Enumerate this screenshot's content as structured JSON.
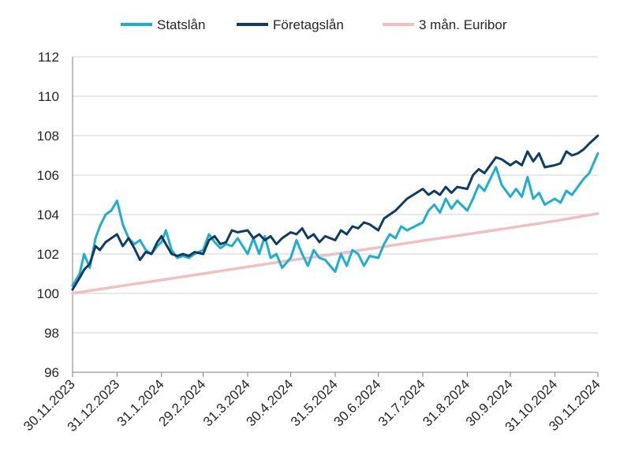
{
  "chart_data": {
    "type": "line",
    "title": "",
    "xlabel": "",
    "ylabel": "",
    "ylim": [
      96,
      112
    ],
    "yticks": [
      "96",
      "98",
      "100",
      "102",
      "104",
      "106",
      "108",
      "110",
      "112"
    ],
    "xticks": [
      "30.11.2023",
      "31.12.2023",
      "31.1.2024",
      "29.2.2024",
      "31.3.2024",
      "30.4.2024",
      "31.5.2024",
      "30.6.2024",
      "31.7.2024",
      "31.8.2024",
      "30.9.2024",
      "31.10.2024",
      "30.11.2024"
    ],
    "grid": "horizontal",
    "legend_position": "top",
    "series": [
      {
        "name": "Statslån",
        "color": "#1BB0CF",
        "values": [
          [
            "30.11.2023",
            100.4
          ],
          [
            "5.12.2023",
            101.0
          ],
          [
            "8.12.2023",
            102.0
          ],
          [
            "12.12.2023",
            101.3
          ],
          [
            "16.12.2023",
            102.8
          ],
          [
            "19.12.2023",
            103.4
          ],
          [
            "23.12.2023",
            104.0
          ],
          [
            "27.12.2023",
            104.2
          ],
          [
            "31.12.2023",
            104.7
          ],
          [
            "4.1.2024",
            103.5
          ],
          [
            "8.1.2024",
            102.8
          ],
          [
            "12.1.2024",
            102.5
          ],
          [
            "16.1.2024",
            102.7
          ],
          [
            "20.1.2024",
            102.2
          ],
          [
            "24.1.2024",
            102.0
          ],
          [
            "28.1.2024",
            102.4
          ],
          [
            "31.1.2024",
            102.6
          ],
          [
            "3.2.2024",
            103.2
          ],
          [
            "7.2.2024",
            102.2
          ],
          [
            "11.2.2024",
            101.8
          ],
          [
            "15.2.2024",
            101.9
          ],
          [
            "19.2.2024",
            101.8
          ],
          [
            "23.2.2024",
            102.0
          ],
          [
            "29.2.2024",
            102.2
          ],
          [
            "4.3.2024",
            103.0
          ],
          [
            "8.3.2024",
            102.6
          ],
          [
            "12.3.2024",
            102.3
          ],
          [
            "16.3.2024",
            102.5
          ],
          [
            "20.3.2024",
            102.4
          ],
          [
            "24.3.2024",
            102.8
          ],
          [
            "31.3.2024",
            102.0
          ],
          [
            "4.4.2024",
            102.8
          ],
          [
            "8.4.2024",
            102.0
          ],
          [
            "12.4.2024",
            102.9
          ],
          [
            "16.4.2024",
            101.8
          ],
          [
            "20.4.2024",
            102.0
          ],
          [
            "24.4.2024",
            101.3
          ],
          [
            "30.4.2024",
            101.8
          ],
          [
            "4.5.2024",
            102.7
          ],
          [
            "8.5.2024",
            102.0
          ],
          [
            "12.5.2024",
            101.4
          ],
          [
            "16.5.2024",
            102.2
          ],
          [
            "20.5.2024",
            101.8
          ],
          [
            "24.5.2024",
            101.7
          ],
          [
            "31.5.2024",
            101.1
          ],
          [
            "4.6.2024",
            102.0
          ],
          [
            "8.6.2024",
            101.4
          ],
          [
            "12.6.2024",
            102.2
          ],
          [
            "16.6.2024",
            102.0
          ],
          [
            "20.6.2024",
            101.4
          ],
          [
            "24.6.2024",
            101.9
          ],
          [
            "30.6.2024",
            101.8
          ],
          [
            "4.7.2024",
            102.5
          ],
          [
            "8.7.2024",
            103.0
          ],
          [
            "12.7.2024",
            102.8
          ],
          [
            "16.7.2024",
            103.4
          ],
          [
            "20.7.2024",
            103.2
          ],
          [
            "31.7.2024",
            103.6
          ],
          [
            "4.8.2024",
            104.2
          ],
          [
            "8.8.2024",
            104.5
          ],
          [
            "12.8.2024",
            104.1
          ],
          [
            "16.8.2024",
            104.8
          ],
          [
            "20.8.2024",
            104.3
          ],
          [
            "24.8.2024",
            104.7
          ],
          [
            "31.8.2024",
            104.2
          ],
          [
            "4.9.2024",
            104.8
          ],
          [
            "8.9.2024",
            105.5
          ],
          [
            "12.9.2024",
            105.2
          ],
          [
            "16.9.2024",
            105.8
          ],
          [
            "20.9.2024",
            106.4
          ],
          [
            "24.9.2024",
            105.5
          ],
          [
            "30.9.2024",
            104.9
          ],
          [
            "4.10.2024",
            105.3
          ],
          [
            "8.10.2024",
            104.9
          ],
          [
            "12.10.2024",
            105.9
          ],
          [
            "16.10.2024",
            104.8
          ],
          [
            "20.10.2024",
            105.1
          ],
          [
            "24.10.2024",
            104.5
          ],
          [
            "31.10.2024",
            104.8
          ],
          [
            "4.11.2024",
            104.6
          ],
          [
            "8.11.2024",
            105.2
          ],
          [
            "12.11.2024",
            105.0
          ],
          [
            "16.11.2024",
            105.4
          ],
          [
            "20.11.2024",
            105.8
          ],
          [
            "24.11.2024",
            106.1
          ],
          [
            "30.11.2024",
            107.1
          ]
        ]
      },
      {
        "name": "Företagslån",
        "color": "#0E3B68",
        "values": [
          [
            "30.11.2023",
            100.2
          ],
          [
            "5.12.2023",
            100.8
          ],
          [
            "8.12.2023",
            101.2
          ],
          [
            "12.12.2023",
            101.5
          ],
          [
            "16.12.2023",
            102.4
          ],
          [
            "19.12.2023",
            102.2
          ],
          [
            "23.12.2023",
            102.6
          ],
          [
            "27.12.2023",
            102.8
          ],
          [
            "31.12.2023",
            103.0
          ],
          [
            "4.1.2024",
            102.4
          ],
          [
            "8.1.2024",
            102.8
          ],
          [
            "12.1.2024",
            102.3
          ],
          [
            "16.1.2024",
            101.7
          ],
          [
            "20.1.2024",
            102.1
          ],
          [
            "24.1.2024",
            102.0
          ],
          [
            "28.1.2024",
            102.6
          ],
          [
            "31.1.2024",
            102.9
          ],
          [
            "3.2.2024",
            102.5
          ],
          [
            "7.2.2024",
            102.0
          ],
          [
            "11.2.2024",
            101.9
          ],
          [
            "15.2.2024",
            102.0
          ],
          [
            "19.2.2024",
            101.9
          ],
          [
            "23.2.2024",
            102.1
          ],
          [
            "29.2.2024",
            102.0
          ],
          [
            "4.3.2024",
            102.7
          ],
          [
            "8.3.2024",
            102.9
          ],
          [
            "12.3.2024",
            102.5
          ],
          [
            "16.3.2024",
            102.6
          ],
          [
            "20.3.2024",
            103.2
          ],
          [
            "24.3.2024",
            103.1
          ],
          [
            "31.3.2024",
            103.2
          ],
          [
            "4.4.2024",
            102.8
          ],
          [
            "8.4.2024",
            103.0
          ],
          [
            "12.4.2024",
            102.7
          ],
          [
            "16.4.2024",
            102.9
          ],
          [
            "20.4.2024",
            102.5
          ],
          [
            "24.4.2024",
            102.8
          ],
          [
            "30.4.2024",
            103.1
          ],
          [
            "4.5.2024",
            103.0
          ],
          [
            "8.5.2024",
            103.3
          ],
          [
            "12.5.2024",
            102.8
          ],
          [
            "16.5.2024",
            103.0
          ],
          [
            "20.5.2024",
            102.6
          ],
          [
            "24.5.2024",
            102.9
          ],
          [
            "31.5.2024",
            102.7
          ],
          [
            "4.6.2024",
            103.2
          ],
          [
            "8.6.2024",
            103.0
          ],
          [
            "12.6.2024",
            103.4
          ],
          [
            "16.6.2024",
            103.3
          ],
          [
            "20.6.2024",
            103.6
          ],
          [
            "24.6.2024",
            103.5
          ],
          [
            "30.6.2024",
            103.2
          ],
          [
            "4.7.2024",
            103.8
          ],
          [
            "8.7.2024",
            104.0
          ],
          [
            "12.7.2024",
            104.2
          ],
          [
            "16.7.2024",
            104.5
          ],
          [
            "20.7.2024",
            104.8
          ],
          [
            "31.7.2024",
            105.3
          ],
          [
            "4.8.2024",
            105.0
          ],
          [
            "8.8.2024",
            105.2
          ],
          [
            "12.8.2024",
            105.0
          ],
          [
            "16.8.2024",
            105.4
          ],
          [
            "20.8.2024",
            105.1
          ],
          [
            "24.8.2024",
            105.4
          ],
          [
            "31.8.2024",
            105.3
          ],
          [
            "4.9.2024",
            106.0
          ],
          [
            "8.9.2024",
            106.3
          ],
          [
            "12.9.2024",
            106.1
          ],
          [
            "16.9.2024",
            106.5
          ],
          [
            "20.9.2024",
            106.9
          ],
          [
            "24.9.2024",
            106.8
          ],
          [
            "30.9.2024",
            106.5
          ],
          [
            "4.10.2024",
            106.7
          ],
          [
            "8.10.2024",
            106.5
          ],
          [
            "12.10.2024",
            107.2
          ],
          [
            "16.10.2024",
            106.7
          ],
          [
            "20.10.2024",
            107.1
          ],
          [
            "24.10.2024",
            106.4
          ],
          [
            "31.10.2024",
            106.5
          ],
          [
            "4.11.2024",
            106.6
          ],
          [
            "8.11.2024",
            107.2
          ],
          [
            "12.11.2024",
            107.0
          ],
          [
            "16.11.2024",
            107.1
          ],
          [
            "20.11.2024",
            107.3
          ],
          [
            "24.11.2024",
            107.6
          ],
          [
            "30.11.2024",
            108.0
          ]
        ]
      },
      {
        "name": "3 mån. Euribor",
        "color": "#F2BFC0",
        "values": [
          [
            "30.11.2023",
            100.0
          ],
          [
            "31.12.2023",
            100.35
          ],
          [
            "31.1.2024",
            100.68
          ],
          [
            "29.2.2024",
            101.0
          ],
          [
            "31.3.2024",
            101.35
          ],
          [
            "30.4.2024",
            101.68
          ],
          [
            "31.5.2024",
            102.0
          ],
          [
            "30.6.2024",
            102.33
          ],
          [
            "31.7.2024",
            102.67
          ],
          [
            "31.8.2024",
            103.0
          ],
          [
            "30.9.2024",
            103.33
          ],
          [
            "31.10.2024",
            103.67
          ],
          [
            "30.11.2024",
            104.05
          ]
        ]
      }
    ]
  }
}
